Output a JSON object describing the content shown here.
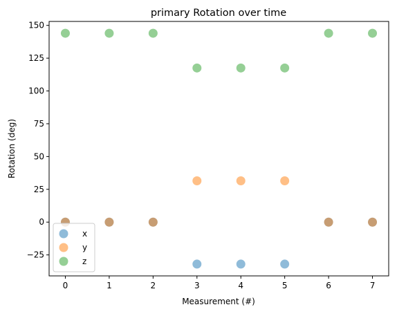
{
  "chart_data": {
    "type": "scatter",
    "title": "primary Rotation over time",
    "xlabel": "Measurement (#)",
    "ylabel": "Rotation (deg)",
    "xlim": [
      -0.37,
      7.37
    ],
    "ylim": [
      -41,
      153
    ],
    "xticks": [
      "0",
      "1",
      "2",
      "3",
      "4",
      "5",
      "6",
      "7"
    ],
    "yticks": [
      "−25",
      "0",
      "25",
      "50",
      "75",
      "100",
      "125",
      "150"
    ],
    "ytick_values": [
      -25,
      0,
      25,
      50,
      75,
      100,
      125,
      150
    ],
    "x": [
      0,
      1,
      2,
      3,
      4,
      5,
      6,
      7
    ],
    "series": [
      {
        "name": "x",
        "color": "#1f77b4",
        "values": [
          0,
          0,
          0,
          -32,
          -32,
          -32,
          0,
          0
        ]
      },
      {
        "name": "y",
        "color": "#ff7f0e",
        "values": [
          0,
          0,
          0,
          31.5,
          31.5,
          31.5,
          0,
          0
        ]
      },
      {
        "name": "z",
        "color": "#2ca02c",
        "values": [
          144,
          144,
          144,
          117.5,
          117.5,
          117.5,
          144,
          144
        ]
      }
    ],
    "legend_position": "lower-left",
    "grid": false
  }
}
